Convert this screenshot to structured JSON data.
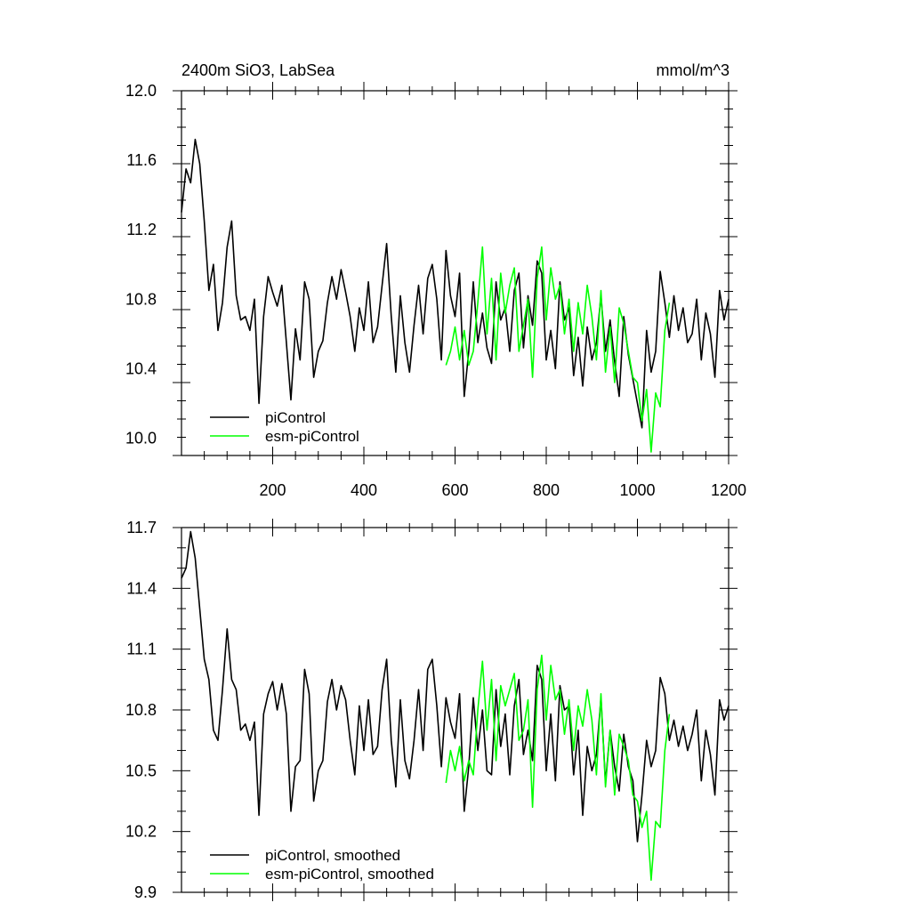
{
  "chart_data": [
    {
      "type": "line",
      "title": "2400m SiO3, LabSea",
      "units": "mmol/m^3",
      "xlim": [
        0,
        1200
      ],
      "ylim": [
        9.9,
        12.0
      ],
      "x_ticks": [
        "200",
        "400",
        "600",
        "800",
        "1000",
        "1200"
      ],
      "y_ticks": [
        "10.0",
        "10.4",
        "10.8",
        "11.2",
        "11.6",
        "12.0"
      ],
      "legend_position": "bottom-left",
      "series": [
        {
          "name": "piControl",
          "color": "#000000",
          "x": [
            0,
            10,
            20,
            30,
            40,
            50,
            60,
            70,
            80,
            90,
            100,
            110,
            120,
            130,
            140,
            150,
            160,
            170,
            180,
            190,
            200,
            210,
            220,
            230,
            240,
            250,
            260,
            270,
            280,
            290,
            300,
            310,
            320,
            330,
            340,
            350,
            360,
            370,
            380,
            390,
            400,
            410,
            420,
            430,
            440,
            450,
            460,
            470,
            480,
            490,
            500,
            510,
            520,
            530,
            540,
            550,
            560,
            570,
            580,
            590,
            600,
            610,
            620,
            630,
            640,
            650,
            660,
            670,
            680,
            690,
            700,
            710,
            720,
            730,
            740,
            750,
            760,
            770,
            780,
            790,
            800,
            810,
            820,
            830,
            840,
            850,
            860,
            870,
            880,
            890,
            900,
            910,
            920,
            930,
            940,
            950,
            960,
            970,
            980,
            990,
            1000,
            1010,
            1020,
            1030,
            1040,
            1050,
            1060,
            1070,
            1080,
            1090,
            1100,
            1110,
            1120,
            1130,
            1140,
            1150,
            1160,
            1170,
            1180,
            1190,
            1200
          ],
          "y": [
            11.3,
            11.55,
            11.47,
            11.72,
            11.58,
            11.25,
            10.85,
            11.0,
            10.62,
            10.78,
            11.1,
            11.25,
            10.82,
            10.68,
            10.7,
            10.62,
            10.8,
            10.2,
            10.7,
            10.93,
            10.84,
            10.76,
            10.88,
            10.55,
            10.22,
            10.63,
            10.45,
            10.9,
            10.8,
            10.35,
            10.5,
            10.56,
            10.78,
            10.93,
            10.8,
            10.97,
            10.84,
            10.7,
            10.5,
            10.75,
            10.62,
            10.9,
            10.55,
            10.64,
            10.88,
            11.12,
            10.7,
            10.38,
            10.82,
            10.55,
            10.38,
            10.65,
            10.88,
            10.6,
            10.92,
            11.0,
            10.8,
            10.45,
            11.08,
            10.82,
            10.7,
            10.95,
            10.24,
            10.5,
            10.9,
            10.55,
            10.72,
            10.52,
            10.43,
            10.9,
            10.68,
            10.75,
            10.5,
            10.85,
            10.95,
            10.52,
            10.82,
            10.65,
            11.02,
            10.95,
            10.45,
            10.62,
            10.4,
            10.9,
            10.68,
            10.75,
            10.36,
            10.58,
            10.3,
            10.64,
            10.45,
            10.55,
            10.82,
            10.5,
            10.68,
            10.44,
            10.24,
            10.7,
            10.48,
            10.34,
            10.2,
            10.06,
            10.62,
            10.38,
            10.5,
            10.96,
            10.78,
            10.58,
            10.82,
            10.62,
            10.75,
            10.55,
            10.6,
            10.8,
            10.45,
            10.72,
            10.6,
            10.35,
            10.85,
            10.68,
            10.8
          ]
        },
        {
          "name": "esm-piControl",
          "color": "#00ff00",
          "x": [
            580,
            590,
            600,
            610,
            620,
            630,
            640,
            650,
            660,
            670,
            680,
            690,
            700,
            710,
            720,
            730,
            740,
            750,
            760,
            770,
            780,
            790,
            800,
            810,
            820,
            830,
            840,
            850,
            860,
            870,
            880,
            890,
            900,
            910,
            920,
            930,
            940,
            950,
            960,
            970,
            980,
            990,
            1000,
            1010,
            1020,
            1030,
            1040,
            1050,
            1060,
            1070
          ],
          "y": [
            10.42,
            10.5,
            10.64,
            10.45,
            10.62,
            10.42,
            10.5,
            10.78,
            11.1,
            10.6,
            10.92,
            10.45,
            10.95,
            10.72,
            10.88,
            10.98,
            10.5,
            10.65,
            10.8,
            10.35,
            10.92,
            11.1,
            10.68,
            10.98,
            10.8,
            10.88,
            10.6,
            10.8,
            10.5,
            10.78,
            10.6,
            10.88,
            10.7,
            10.45,
            10.85,
            10.38,
            10.64,
            10.32,
            10.75,
            10.66,
            10.5,
            10.35,
            10.32,
            10.1,
            10.28,
            9.92,
            10.26,
            10.18,
            10.62,
            10.78
          ]
        }
      ]
    },
    {
      "type": "line",
      "title": "",
      "xlim": [
        0,
        1200
      ],
      "ylim": [
        9.9,
        11.7
      ],
      "y_ticks": [
        "9.9",
        "10.2",
        "10.5",
        "10.8",
        "11.1",
        "11.4",
        "11.7"
      ],
      "legend_position": "bottom-left",
      "series": [
        {
          "name": "piControl, smoothed",
          "color": "#000000",
          "x": [
            0,
            10,
            20,
            30,
            40,
            50,
            60,
            70,
            80,
            90,
            100,
            110,
            120,
            130,
            140,
            150,
            160,
            170,
            180,
            190,
            200,
            210,
            220,
            230,
            240,
            250,
            260,
            270,
            280,
            290,
            300,
            310,
            320,
            330,
            340,
            350,
            360,
            370,
            380,
            390,
            400,
            410,
            420,
            430,
            440,
            450,
            460,
            470,
            480,
            490,
            500,
            510,
            520,
            530,
            540,
            550,
            560,
            570,
            580,
            590,
            600,
            610,
            620,
            630,
            640,
            650,
            660,
            670,
            680,
            690,
            700,
            710,
            720,
            730,
            740,
            750,
            760,
            770,
            780,
            790,
            800,
            810,
            820,
            830,
            840,
            850,
            860,
            870,
            880,
            890,
            900,
            910,
            920,
            930,
            940,
            950,
            960,
            970,
            980,
            990,
            1000,
            1010,
            1020,
            1030,
            1040,
            1050,
            1060,
            1070,
            1080,
            1090,
            1100,
            1110,
            1120,
            1130,
            1140,
            1150,
            1160,
            1170,
            1180,
            1190,
            1200
          ],
          "y": [
            11.45,
            11.5,
            11.68,
            11.55,
            11.3,
            11.05,
            10.95,
            10.7,
            10.65,
            10.9,
            11.2,
            10.95,
            10.9,
            10.7,
            10.73,
            10.65,
            10.74,
            10.28,
            10.78,
            10.88,
            10.94,
            10.8,
            10.93,
            10.78,
            10.3,
            10.52,
            10.55,
            11.0,
            10.88,
            10.35,
            10.5,
            10.55,
            10.84,
            10.95,
            10.8,
            10.92,
            10.85,
            10.65,
            10.48,
            10.82,
            10.6,
            10.85,
            10.58,
            10.62,
            10.9,
            11.05,
            10.65,
            10.42,
            10.85,
            10.55,
            10.46,
            10.65,
            10.9,
            10.6,
            11.0,
            11.05,
            10.82,
            10.52,
            10.86,
            10.74,
            10.66,
            10.88,
            10.3,
            10.52,
            10.86,
            10.6,
            10.8,
            10.5,
            10.48,
            10.9,
            10.62,
            10.78,
            10.48,
            10.82,
            10.95,
            10.58,
            10.7,
            10.55,
            11.02,
            10.95,
            10.5,
            10.78,
            10.45,
            10.92,
            10.8,
            10.82,
            10.48,
            10.7,
            10.28,
            10.62,
            10.5,
            10.58,
            10.86,
            10.44,
            10.7,
            10.52,
            10.4,
            10.68,
            10.52,
            10.45,
            10.15,
            10.38,
            10.65,
            10.52,
            10.6,
            10.96,
            10.88,
            10.65,
            10.75,
            10.62,
            10.72,
            10.6,
            10.68,
            10.8,
            10.45,
            10.7,
            10.58,
            10.38,
            10.85,
            10.75,
            10.82
          ]
        },
        {
          "name": "esm-piControl, smoothed",
          "color": "#00ff00",
          "x": [
            580,
            590,
            600,
            610,
            620,
            630,
            640,
            650,
            660,
            670,
            680,
            690,
            700,
            710,
            720,
            730,
            740,
            750,
            760,
            770,
            780,
            790,
            800,
            810,
            820,
            830,
            840,
            850,
            860,
            870,
            880,
            890,
            900,
            910,
            920,
            930,
            940,
            950,
            960,
            970,
            980,
            990,
            1000,
            1010,
            1020,
            1030,
            1040,
            1050,
            1060,
            1070
          ],
          "y": [
            10.44,
            10.6,
            10.5,
            10.62,
            10.45,
            10.55,
            10.48,
            10.8,
            11.04,
            10.7,
            10.95,
            10.55,
            10.92,
            10.82,
            10.9,
            10.98,
            10.65,
            10.7,
            10.85,
            10.32,
            10.9,
            11.07,
            10.75,
            11.02,
            10.85,
            10.9,
            10.68,
            10.85,
            10.6,
            10.82,
            10.72,
            10.9,
            10.75,
            10.48,
            10.88,
            10.42,
            10.7,
            10.38,
            10.68,
            10.62,
            10.55,
            10.38,
            10.35,
            10.22,
            10.3,
            9.96,
            10.25,
            10.22,
            10.6,
            10.78
          ]
        }
      ]
    }
  ]
}
